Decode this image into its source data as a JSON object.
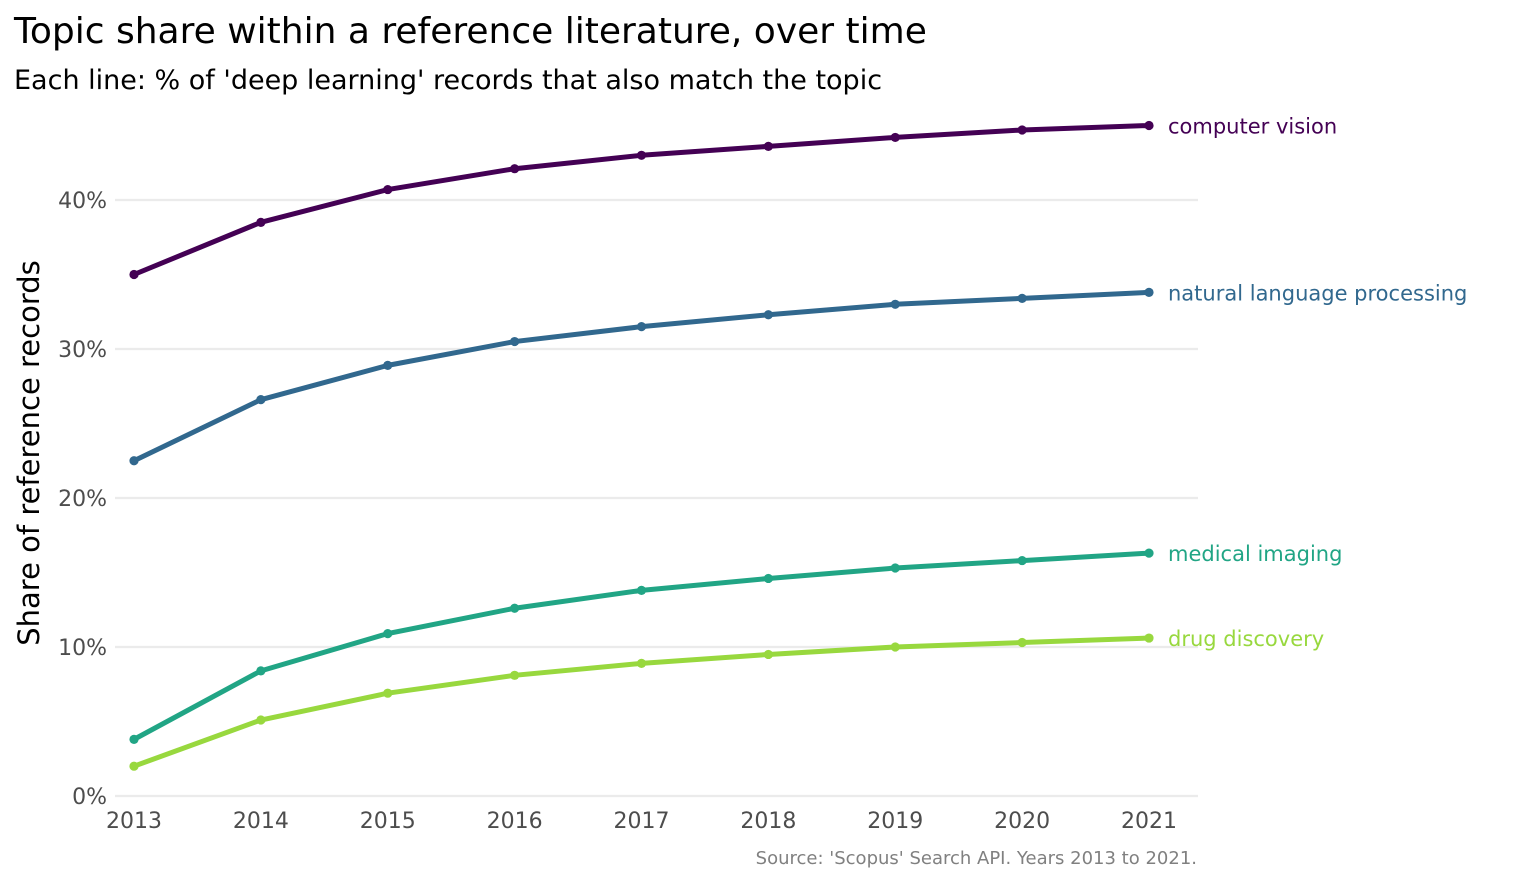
{
  "chart_data": {
    "type": "line",
    "title": "Topic share within a reference literature, over time",
    "subtitle": "Each line: % of 'deep learning' records that also match the topic",
    "xlabel": "",
    "ylabel": "Share of reference records",
    "caption": "Source: 'Scopus' Search API. Years 2013 to 2021.",
    "x": [
      2013,
      2014,
      2015,
      2016,
      2017,
      2018,
      2019,
      2020,
      2021
    ],
    "x_tick_labels": [
      "2013",
      "2014",
      "2015",
      "2016",
      "2017",
      "2018",
      "2019",
      "2020",
      "2021"
    ],
    "ylim": [
      0,
      45
    ],
    "y_ticks": [
      0,
      10,
      20,
      30,
      40
    ],
    "y_tick_labels": [
      "0%",
      "10%",
      "20%",
      "30%",
      "40%"
    ],
    "grid": true,
    "legend": "direct labels at line ends",
    "series": [
      {
        "name": "computer vision",
        "color": "#440154",
        "values": [
          35.0,
          38.5,
          40.7,
          42.1,
          43.0,
          43.6,
          44.2,
          44.7,
          45.0
        ]
      },
      {
        "name": "natural language processing",
        "color": "#31688e",
        "values": [
          22.5,
          26.6,
          28.9,
          30.5,
          31.5,
          32.3,
          33.0,
          33.4,
          33.8
        ]
      },
      {
        "name": "medical imaging",
        "color": "#21a585",
        "values": [
          3.8,
          8.4,
          10.9,
          12.6,
          13.8,
          14.6,
          15.3,
          15.8,
          16.3
        ]
      },
      {
        "name": "drug discovery",
        "color": "#98d83e",
        "values": [
          2.0,
          5.1,
          6.9,
          8.1,
          8.9,
          9.5,
          10.0,
          10.3,
          10.6
        ]
      }
    ]
  }
}
